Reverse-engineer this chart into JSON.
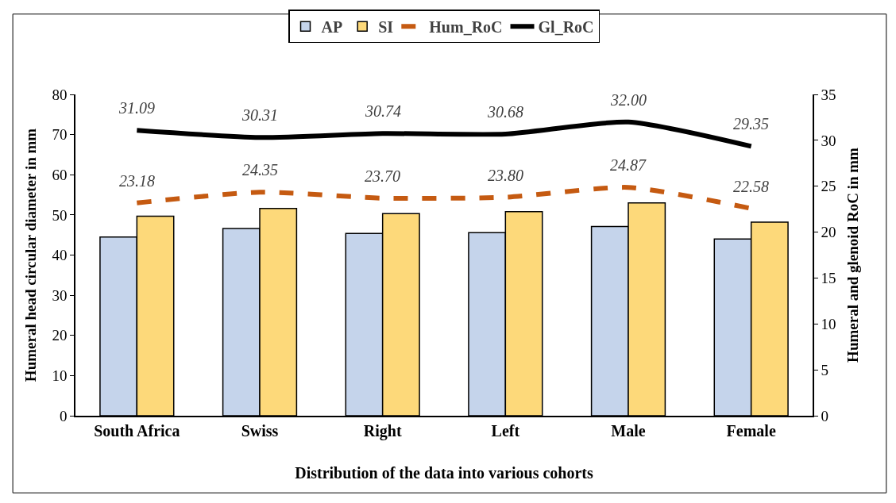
{
  "chart_data": {
    "type": "bar",
    "xlabel": "Distribution of the data into various cohorts",
    "ylabel": "Humeral head circular diameter in mm",
    "y2label": "Humeral and glenoid RoC in mm",
    "categories": [
      "South Africa",
      "Swiss",
      "Right",
      "Left",
      "Male",
      "Female"
    ],
    "series": [
      {
        "name": "AP",
        "color": "#c5d4eb",
        "values": [
          44.5,
          46.6,
          45.4,
          45.6,
          47.1,
          44.0
        ]
      },
      {
        "name": "SI",
        "color": "#fdd97a",
        "values": [
          49.7,
          51.6,
          50.3,
          50.8,
          53.0,
          48.2
        ]
      },
      {
        "name": "Hum_RoC",
        "type": "line",
        "axis": "y2",
        "line_style": "dashed",
        "color": "#c55a11",
        "values": [
          23.18,
          24.35,
          23.7,
          23.8,
          24.87,
          22.58
        ],
        "value_labels": [
          "23.18",
          "24.35",
          "23.70",
          "23.80",
          "24.87",
          "22.58"
        ]
      },
      {
        "name": "Gl_RoC",
        "type": "line",
        "axis": "y2",
        "line_style": "solid",
        "color": "#000000",
        "values": [
          31.09,
          30.31,
          30.74,
          30.68,
          32.0,
          29.35
        ],
        "value_labels": [
          "31.09",
          "30.31",
          "30.74",
          "30.68",
          "32.00",
          "29.35"
        ]
      }
    ],
    "ylim": [
      0,
      80
    ],
    "yticks": [
      0,
      10,
      20,
      30,
      40,
      50,
      60,
      70,
      80
    ],
    "y2lim": [
      0,
      35
    ],
    "y2ticks": [
      0,
      5,
      10,
      15,
      20,
      25,
      30,
      35
    ],
    "legend": "top"
  }
}
